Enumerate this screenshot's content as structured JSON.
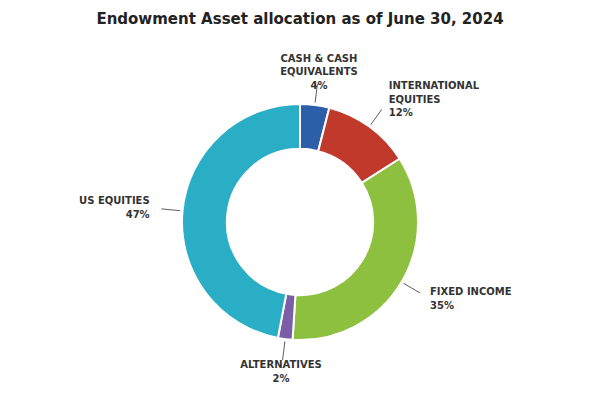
{
  "chart_data": {
    "type": "donut",
    "title": "Endowment Asset allocation as of June 30, 2024",
    "categories": [
      "CASH & CASH\nEQUIVALENTS",
      "INTERNATIONAL\nEQUITIES",
      "FIXED INCOME",
      "ALTERNATIVES",
      "US EQUITIES"
    ],
    "values": [
      4,
      12,
      35,
      2,
      47
    ],
    "value_labels": [
      "4%",
      "12%",
      "35%",
      "2%",
      "47%"
    ],
    "colors": [
      "#2c5fa8",
      "#c0392b",
      "#8dc03f",
      "#7b5ea7",
      "#29aec5"
    ]
  }
}
